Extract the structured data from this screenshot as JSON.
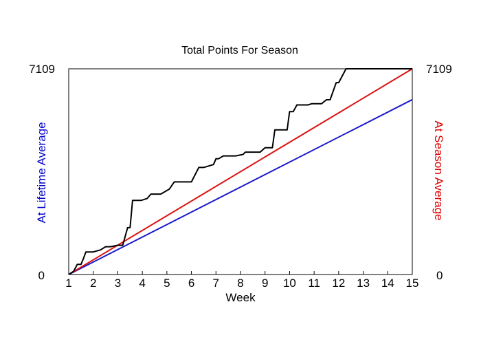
{
  "chart_data": {
    "type": "line",
    "title": "Total Points For Season",
    "xlabel": "Week",
    "ylabel_left": "At Lifetime Average",
    "ylabel_right": "At Season Average",
    "xlim": [
      1,
      15
    ],
    "ylim": [
      0,
      7109
    ],
    "x_ticks": [
      "1",
      "2",
      "3",
      "4",
      "5",
      "6",
      "7",
      "8",
      "9",
      "10",
      "11",
      "12",
      "13",
      "14",
      "15"
    ],
    "y_ticks_left": [
      "0",
      "7109"
    ],
    "y_ticks_right": [
      "0",
      "7109"
    ],
    "colors": {
      "left_axis": "#0000cc",
      "right_axis": "#dd0000"
    },
    "grid": false,
    "series": [
      {
        "name": "At Lifetime Average",
        "color": "#1a1acc",
        "x": [
          1,
          15
        ],
        "y": [
          0,
          6043
        ]
      },
      {
        "name": "At Season Average",
        "color": "#dd1111",
        "x": [
          1,
          15
        ],
        "y": [
          0,
          7109
        ]
      },
      {
        "name": "Total Points",
        "color": "#000000",
        "x": [
          1,
          1.2,
          1.35,
          1.5,
          1.6,
          1.7,
          2.0,
          2.3,
          2.5,
          2.7,
          3.0,
          3.2,
          3.4,
          3.5,
          3.6,
          3.7,
          3.95,
          4.2,
          4.35,
          4.6,
          4.75,
          5.1,
          5.3,
          5.5,
          6.0,
          6.3,
          6.5,
          6.9,
          7.0,
          7.1,
          7.3,
          7.8,
          8.1,
          8.2,
          8.8,
          9.0,
          9.3,
          9.4,
          9.9,
          10.0,
          10.15,
          10.3,
          10.75,
          10.9,
          11.3,
          11.5,
          11.65,
          11.9,
          12.0,
          12.3,
          15
        ],
        "y": [
          0,
          110,
          350,
          350,
          550,
          780,
          780,
          850,
          960,
          960,
          1010,
          1010,
          1620,
          1620,
          2560,
          2560,
          2560,
          2630,
          2780,
          2780,
          2780,
          2950,
          3200,
          3200,
          3200,
          3700,
          3700,
          3800,
          4000,
          4000,
          4100,
          4100,
          4150,
          4230,
          4230,
          4380,
          4380,
          5000,
          5000,
          5630,
          5630,
          5860,
          5860,
          5900,
          5900,
          6040,
          6040,
          6630,
          6630,
          7109,
          7109
        ]
      }
    ]
  }
}
